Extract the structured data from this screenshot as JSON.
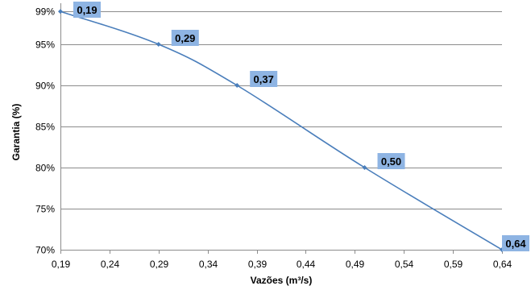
{
  "chart_data": {
    "type": "line",
    "xlabel": "Vazões (m³/s)",
    "ylabel": "Garantia (%)",
    "xlim": [
      0.19,
      0.64
    ],
    "ylim": [
      70,
      100
    ],
    "x_ticks": [
      "0,19",
      "0,24",
      "0,29",
      "0,34",
      "0,39",
      "0,44",
      "0,49",
      "0,54",
      "0,59",
      "0,64"
    ],
    "y_ticks": [
      {
        "value": 70,
        "label": "70%"
      },
      {
        "value": 75,
        "label": "75%"
      },
      {
        "value": 80,
        "label": "80%"
      },
      {
        "value": 85,
        "label": "85%"
      },
      {
        "value": 90,
        "label": "90%"
      },
      {
        "value": 95,
        "label": "95%"
      },
      {
        "value": 99,
        "label": "99%"
      }
    ],
    "grid": "horizontal",
    "legend": "none",
    "series": [
      {
        "color": "#4a7ebb",
        "label_bg": "#8eb4e3",
        "points": [
          {
            "x": 0.19,
            "y": 99,
            "label": "0,19"
          },
          {
            "x": 0.29,
            "y": 95,
            "label": "0,29"
          },
          {
            "x": 0.37,
            "y": 90,
            "label": "0,37"
          },
          {
            "x": 0.5,
            "y": 80,
            "label": "0,50"
          },
          {
            "x": 0.64,
            "y": 70,
            "label": "0,64"
          }
        ]
      }
    ]
  }
}
